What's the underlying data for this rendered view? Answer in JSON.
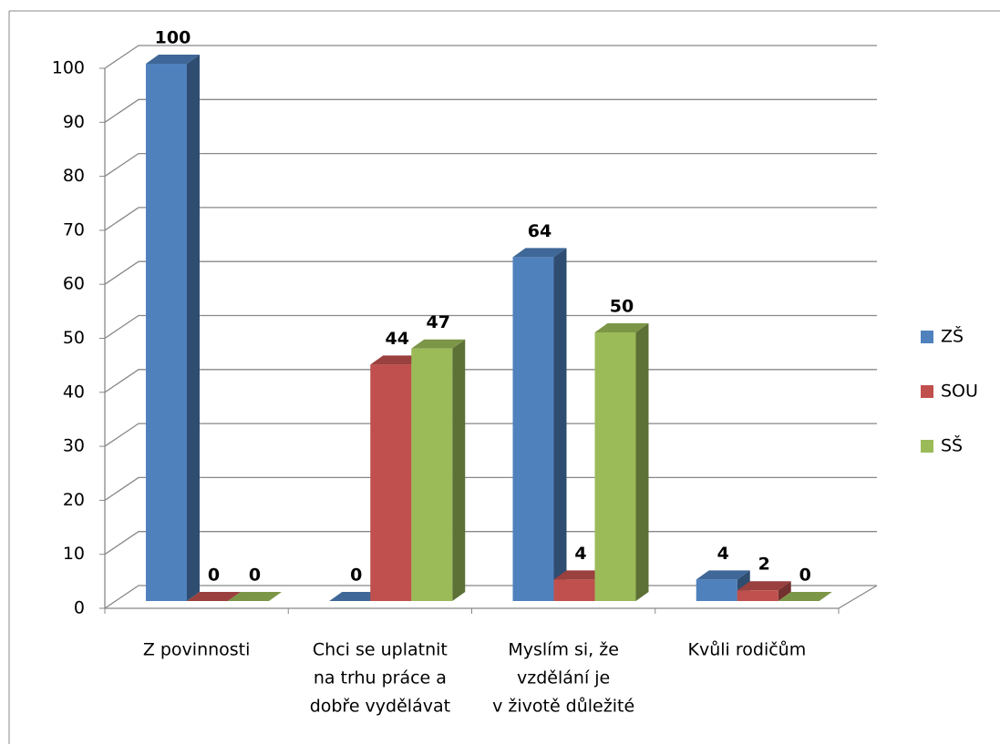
{
  "chart_data": {
    "type": "bar3d",
    "categories": [
      [
        "Z povinnosti"
      ],
      [
        "Chci se uplatnit",
        "na trhu práce a",
        "dobře vydělávat"
      ],
      [
        "Myslím si, že",
        "vzdělání je",
        "v životě důležité"
      ],
      [
        "Kvůli rodičům"
      ]
    ],
    "series": [
      {
        "name": "ZŠ",
        "color": "#4f81bd",
        "values": [
          100,
          0,
          64,
          4
        ]
      },
      {
        "name": "SOU",
        "color": "#c0504d",
        "values": [
          0,
          44,
          4,
          2
        ]
      },
      {
        "name": "SŠ",
        "color": "#9bbb59",
        "values": [
          0,
          47,
          50,
          0
        ]
      }
    ],
    "ylim": [
      0,
      100
    ],
    "yticks": [
      0,
      10,
      20,
      30,
      40,
      50,
      60,
      70,
      80,
      90,
      100
    ],
    "grid": true,
    "legend": "right"
  }
}
